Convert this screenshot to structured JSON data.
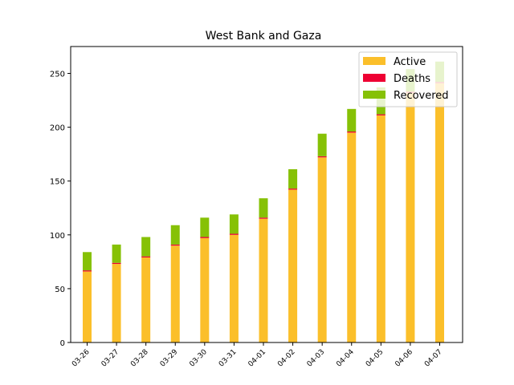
{
  "chart_data": {
    "type": "bar",
    "stacked": true,
    "title": "West Bank and Gaza",
    "xlabel": "",
    "ylabel": "",
    "categories": [
      "03-26",
      "03-27",
      "03-28",
      "03-29",
      "03-30",
      "03-31",
      "04-01",
      "04-02",
      "04-03",
      "04-04",
      "04-05",
      "04-06",
      "04-07"
    ],
    "series": [
      {
        "name": "Active",
        "color": "#fbbf2a",
        "values": [
          66,
          73,
          79,
          90,
          97,
          100,
          115,
          142,
          172,
          195,
          211,
          232,
          241
        ]
      },
      {
        "name": "Deaths",
        "color": "#ee0033",
        "values": [
          1,
          1,
          1,
          1,
          1,
          1,
          1,
          1,
          1,
          1,
          1,
          1,
          1
        ]
      },
      {
        "name": "Recovered",
        "color": "#86c106",
        "values": [
          17,
          17,
          18,
          18,
          18,
          18,
          18,
          18,
          21,
          21,
          25,
          21,
          19
        ]
      }
    ],
    "ylim": [
      0,
      275
    ],
    "yticks": [
      0,
      50,
      100,
      150,
      200,
      250
    ],
    "grid": false,
    "legend_position": "top-right"
  }
}
